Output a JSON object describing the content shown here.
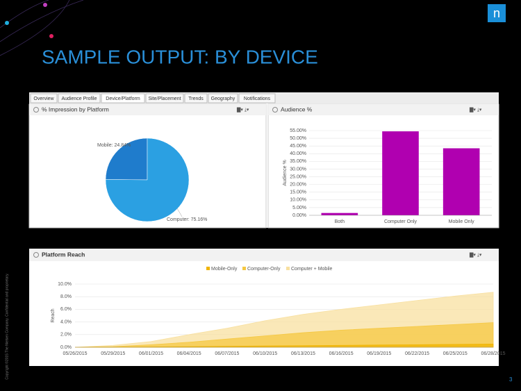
{
  "slide_title": "SAMPLE OUTPUT: BY DEVICE",
  "logo": "n",
  "tabs": [
    "Overview",
    "Audience Profile",
    "Device/Platform",
    "Site/Placement",
    "Trends",
    "Geography",
    "Notifications"
  ],
  "copyright": "Copyright ©2015 The Nielsen Company. Confidential and proprietary.",
  "page_number": "3",
  "chart_data": [
    {
      "type": "pie",
      "title": "% Impression by Platform",
      "categories": [
        "Mobile",
        "Computer"
      ],
      "values": [
        24.84,
        75.16
      ],
      "value_labels": [
        "Mobile: 24.84%",
        "Computer: 75.16%"
      ],
      "colors": [
        "#1f7ccc",
        "#2ba0e2"
      ]
    },
    {
      "type": "bar",
      "title": "Audience %",
      "ylabel": "Audience %",
      "categories": [
        "Both",
        "Computer Only",
        "Mobile Only"
      ],
      "values": [
        1.5,
        54.5,
        43.5
      ],
      "color": "#b000b0",
      "ylim": [
        0,
        55
      ],
      "yticks": [
        {
          "value": 0,
          "label": "0.00%"
        },
        {
          "value": 5,
          "label": "5.00%"
        },
        {
          "value": 10,
          "label": "10.00%"
        },
        {
          "value": 15,
          "label": "15.00%"
        },
        {
          "value": 20,
          "label": "20.00%"
        },
        {
          "value": 25,
          "label": "25.00%"
        },
        {
          "value": 30,
          "label": "30.00%"
        },
        {
          "value": 35,
          "label": "35.00%"
        },
        {
          "value": 40,
          "label": "40.00%"
        },
        {
          "value": 45,
          "label": "45.00%"
        },
        {
          "value": 50,
          "label": "50.00%"
        },
        {
          "value": 55,
          "label": "55.00%"
        }
      ],
      "grid": true
    },
    {
      "type": "area",
      "title": "Platform Reach",
      "ylabel": "Reach",
      "categories": [
        "05/26/2015",
        "05/29/2015",
        "06/01/2015",
        "06/04/2015",
        "06/07/2015",
        "06/10/2015",
        "06/13/2015",
        "06/16/2015",
        "06/19/2015",
        "06/22/2015",
        "06/25/2015",
        "06/28/2015"
      ],
      "series": [
        {
          "name": "Mobile-Only",
          "color": "#f0b400",
          "values": [
            0,
            0.02,
            0.05,
            0.1,
            0.15,
            0.2,
            0.25,
            0.3,
            0.35,
            0.4,
            0.45,
            0.5
          ]
        },
        {
          "name": "Computer-Only",
          "color": "#f5c842",
          "values": [
            0,
            0.1,
            0.4,
            0.8,
            1.3,
            1.8,
            2.3,
            2.7,
            3.0,
            3.3,
            3.6,
            3.9
          ]
        },
        {
          "name": "Computer + Mobile",
          "color": "#f8e0a0",
          "values": [
            0,
            0.3,
            0.9,
            2.0,
            3.0,
            4.2,
            5.2,
            6.0,
            6.7,
            7.4,
            8.1,
            8.7
          ]
        }
      ],
      "ylim": [
        0,
        10
      ],
      "yticks": [
        {
          "value": 0,
          "label": "0.0%"
        },
        {
          "value": 2,
          "label": "2.0%"
        },
        {
          "value": 4,
          "label": "4.0%"
        },
        {
          "value": 6,
          "label": "6.0%"
        },
        {
          "value": 8,
          "label": "8.0%"
        },
        {
          "value": 10,
          "label": "10.0%"
        }
      ],
      "grid": true,
      "legend": "top"
    }
  ]
}
